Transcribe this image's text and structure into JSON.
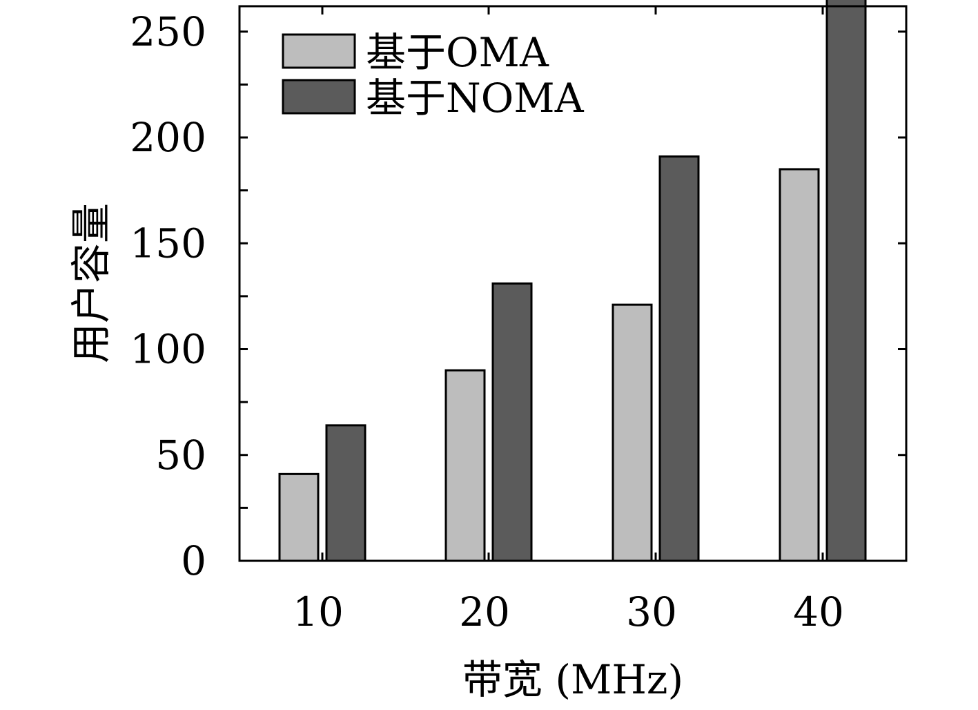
{
  "chart_data": {
    "type": "bar",
    "title": "",
    "xlabel": "带宽 (MHz)",
    "ylabel": "用户容量",
    "categories": [
      "10",
      "20",
      "30",
      "40"
    ],
    "ylim": [
      0,
      262
    ],
    "yticks": [
      "0",
      "50",
      "100",
      "150",
      "200",
      "250"
    ],
    "ytick_values": [
      0,
      50,
      100,
      150,
      200,
      250
    ],
    "series": [
      {
        "name": "基于OMA",
        "values": [
          41,
          90,
          121,
          185
        ],
        "color": "#bdbdbd"
      },
      {
        "name": "基于NOMA",
        "values": [
          64,
          131,
          191,
          269
        ],
        "color": "#5b5b5b"
      }
    ],
    "legend_position": "top-left",
    "grid": false
  }
}
